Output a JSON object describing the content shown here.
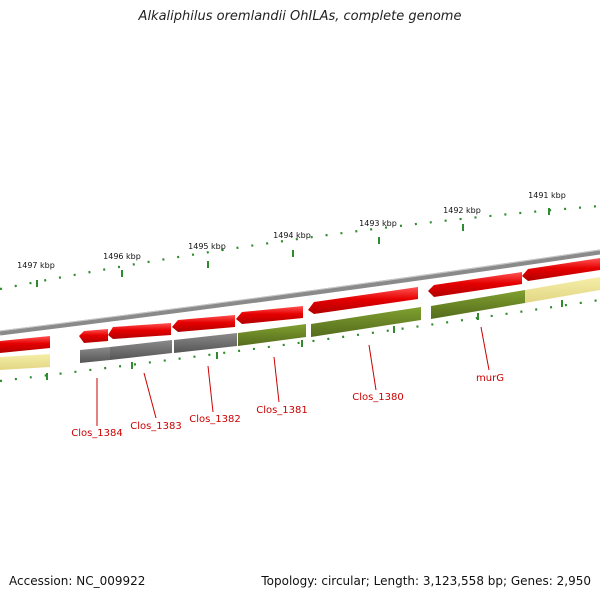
{
  "title": "Alkaliphilus oremlandii OhILAs, complete genome",
  "footer": {
    "accession": "Accession: NC_009922",
    "summary": "Topology: circular; Length: 3,123,558 bp; Genes: 2,950"
  },
  "ruler_labels": [
    "1497 kbp",
    "1496 kbp",
    "1495 kbp",
    "1494 kbp",
    "1493 kbp",
    "1492 kbp",
    "1491 kbp"
  ],
  "gene_labels": [
    "Clos_1384",
    "Clos_1383",
    "Clos_1382",
    "Clos_1381",
    "Clos_1380",
    "murG"
  ],
  "colors": {
    "forward_gene": "#e60000",
    "cog_gray": "#707070",
    "cog_green": "#6b8e23",
    "cog_yellow": "#f0e68c",
    "backbone": "#8a8a8a",
    "ruler": "#2e8b2e",
    "label": "#cc0000"
  }
}
